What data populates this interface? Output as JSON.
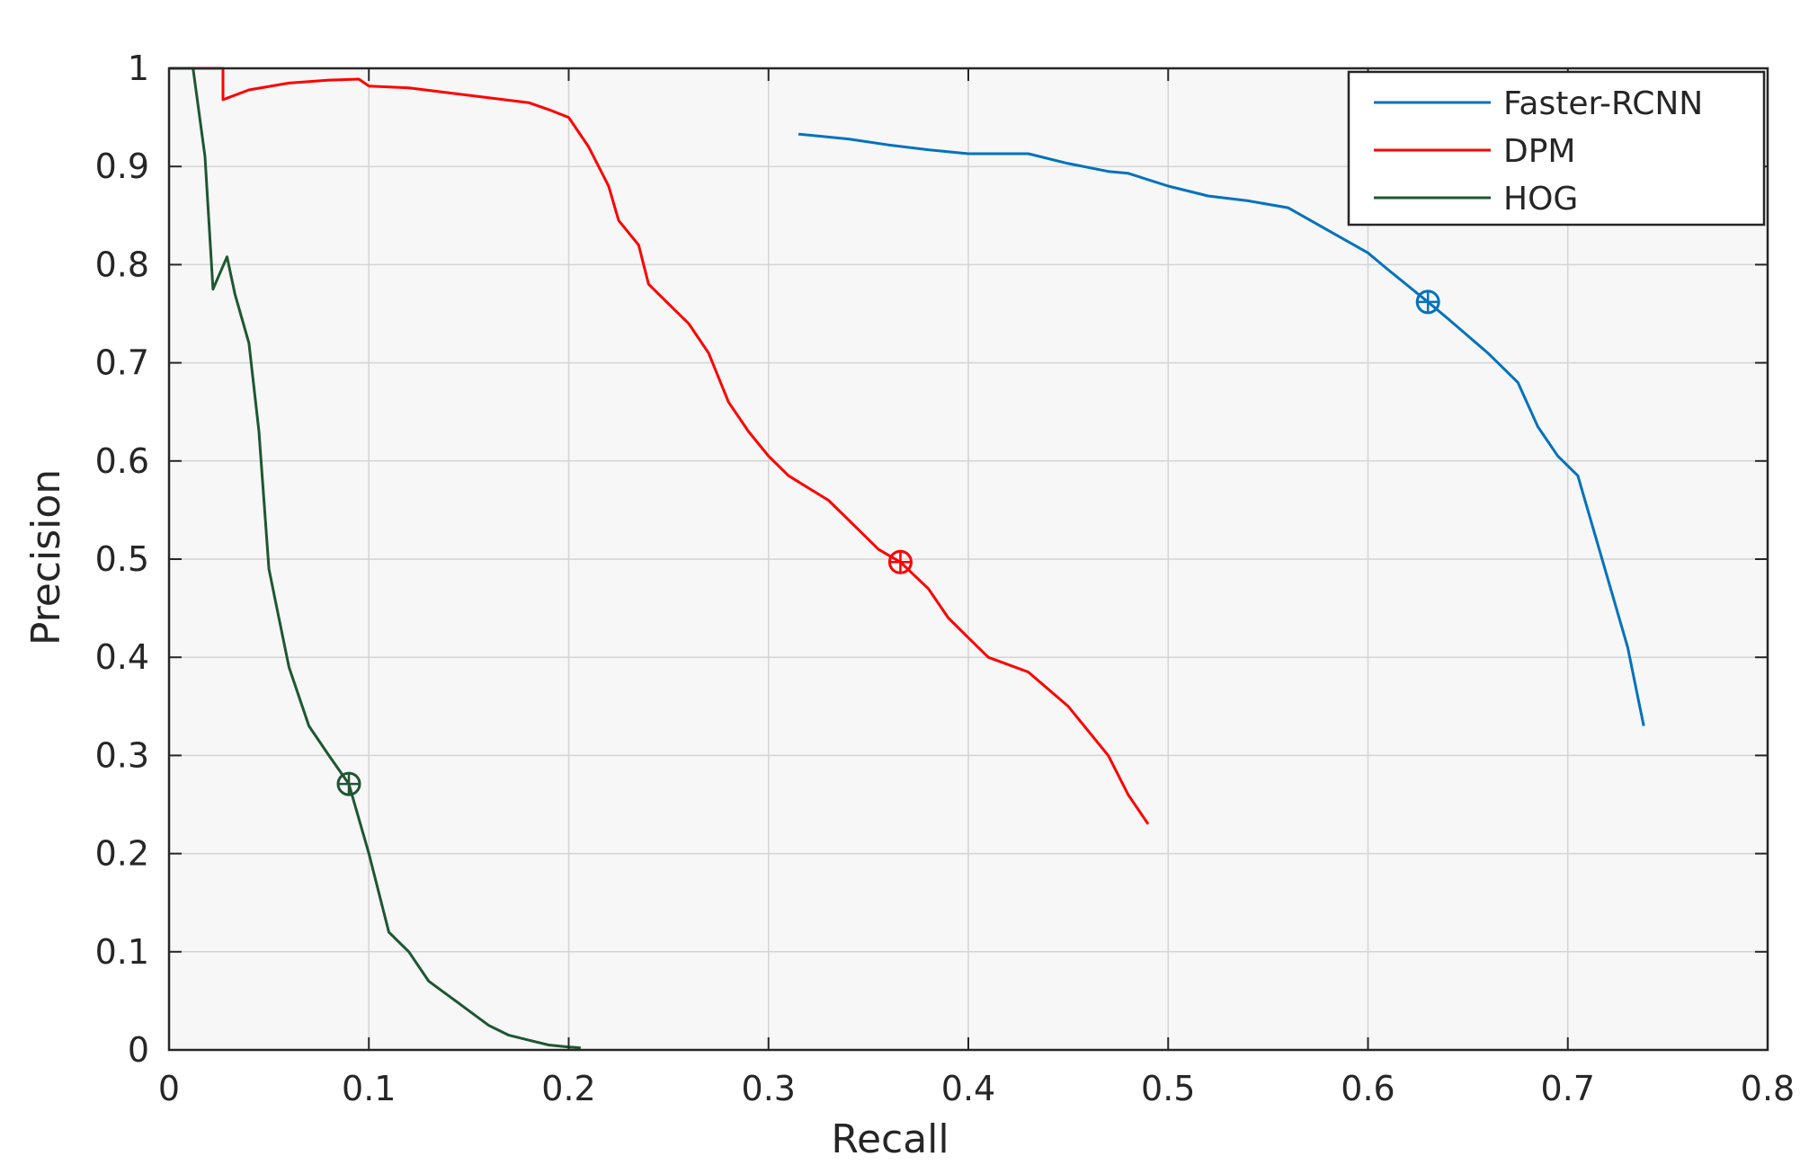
{
  "chart_data": {
    "type": "line",
    "title": "",
    "xlabel": "Recall",
    "ylabel": "Precision",
    "xlim": [
      0,
      0.8
    ],
    "ylim": [
      0,
      1
    ],
    "grid": true,
    "legend_position": "top-right",
    "xticks": [
      0,
      0.1,
      0.2,
      0.3,
      0.4,
      0.5,
      0.6,
      0.7,
      0.8
    ],
    "yticks": [
      0,
      0.1,
      0.2,
      0.3,
      0.4,
      0.5,
      0.6,
      0.7,
      0.8,
      0.9,
      1
    ],
    "xtick_labels": [
      "0",
      "0.1",
      "0.2",
      "0.3",
      "0.4",
      "0.5",
      "0.6",
      "0.7",
      "0.8"
    ],
    "ytick_labels": [
      "0",
      "0.1",
      "0.2",
      "0.3",
      "0.4",
      "0.5",
      "0.6",
      "0.7",
      "0.8",
      "0.9",
      "1"
    ],
    "series": [
      {
        "name": "Faster-RCNN",
        "color": "#0072BD",
        "marker": {
          "x": 0.63,
          "y": 0.762
        },
        "points": [
          [
            0.315,
            0.933
          ],
          [
            0.34,
            0.928
          ],
          [
            0.36,
            0.922
          ],
          [
            0.38,
            0.917
          ],
          [
            0.4,
            0.913
          ],
          [
            0.43,
            0.913
          ],
          [
            0.45,
            0.903
          ],
          [
            0.47,
            0.895
          ],
          [
            0.48,
            0.893
          ],
          [
            0.5,
            0.88
          ],
          [
            0.52,
            0.87
          ],
          [
            0.54,
            0.865
          ],
          [
            0.56,
            0.858
          ],
          [
            0.58,
            0.835
          ],
          [
            0.6,
            0.812
          ],
          [
            0.61,
            0.795
          ],
          [
            0.63,
            0.762
          ],
          [
            0.64,
            0.745
          ],
          [
            0.66,
            0.71
          ],
          [
            0.675,
            0.68
          ],
          [
            0.685,
            0.635
          ],
          [
            0.695,
            0.605
          ],
          [
            0.705,
            0.585
          ],
          [
            0.71,
            0.55
          ],
          [
            0.72,
            0.48
          ],
          [
            0.73,
            0.41
          ],
          [
            0.735,
            0.36
          ],
          [
            0.738,
            0.33
          ]
        ]
      },
      {
        "name": "DPM",
        "color": "#FF0000",
        "marker": {
          "x": 0.366,
          "y": 0.497
        },
        "points": [
          [
            0.0,
            1.0
          ],
          [
            0.027,
            1.0
          ],
          [
            0.027,
            0.968
          ],
          [
            0.04,
            0.978
          ],
          [
            0.06,
            0.985
          ],
          [
            0.08,
            0.988
          ],
          [
            0.095,
            0.989
          ],
          [
            0.1,
            0.982
          ],
          [
            0.12,
            0.98
          ],
          [
            0.14,
            0.975
          ],
          [
            0.16,
            0.97
          ],
          [
            0.18,
            0.965
          ],
          [
            0.19,
            0.958
          ],
          [
            0.2,
            0.95
          ],
          [
            0.21,
            0.92
          ],
          [
            0.22,
            0.88
          ],
          [
            0.225,
            0.845
          ],
          [
            0.235,
            0.82
          ],
          [
            0.24,
            0.78
          ],
          [
            0.25,
            0.76
          ],
          [
            0.26,
            0.74
          ],
          [
            0.27,
            0.71
          ],
          [
            0.28,
            0.66
          ],
          [
            0.29,
            0.63
          ],
          [
            0.3,
            0.605
          ],
          [
            0.31,
            0.585
          ],
          [
            0.33,
            0.56
          ],
          [
            0.345,
            0.53
          ],
          [
            0.355,
            0.51
          ],
          [
            0.366,
            0.497
          ],
          [
            0.38,
            0.47
          ],
          [
            0.39,
            0.44
          ],
          [
            0.4,
            0.42
          ],
          [
            0.41,
            0.4
          ],
          [
            0.43,
            0.385
          ],
          [
            0.45,
            0.35
          ],
          [
            0.46,
            0.325
          ],
          [
            0.47,
            0.3
          ],
          [
            0.48,
            0.26
          ],
          [
            0.49,
            0.23
          ]
        ]
      },
      {
        "name": "HOG",
        "color": "#1E5631",
        "marker": {
          "x": 0.09,
          "y": 0.271
        },
        "points": [
          [
            0.0,
            1.0
          ],
          [
            0.012,
            1.0
          ],
          [
            0.018,
            0.91
          ],
          [
            0.022,
            0.775
          ],
          [
            0.029,
            0.808
          ],
          [
            0.033,
            0.77
          ],
          [
            0.04,
            0.72
          ],
          [
            0.045,
            0.63
          ],
          [
            0.05,
            0.49
          ],
          [
            0.055,
            0.44
          ],
          [
            0.06,
            0.39
          ],
          [
            0.065,
            0.36
          ],
          [
            0.07,
            0.33
          ],
          [
            0.08,
            0.3
          ],
          [
            0.09,
            0.271
          ],
          [
            0.1,
            0.2
          ],
          [
            0.11,
            0.12
          ],
          [
            0.12,
            0.1
          ],
          [
            0.13,
            0.07
          ],
          [
            0.14,
            0.055
          ],
          [
            0.15,
            0.04
          ],
          [
            0.16,
            0.025
          ],
          [
            0.17,
            0.015
          ],
          [
            0.18,
            0.01
          ],
          [
            0.19,
            0.005
          ],
          [
            0.2,
            0.003
          ],
          [
            0.206,
            0.002
          ]
        ]
      }
    ]
  }
}
